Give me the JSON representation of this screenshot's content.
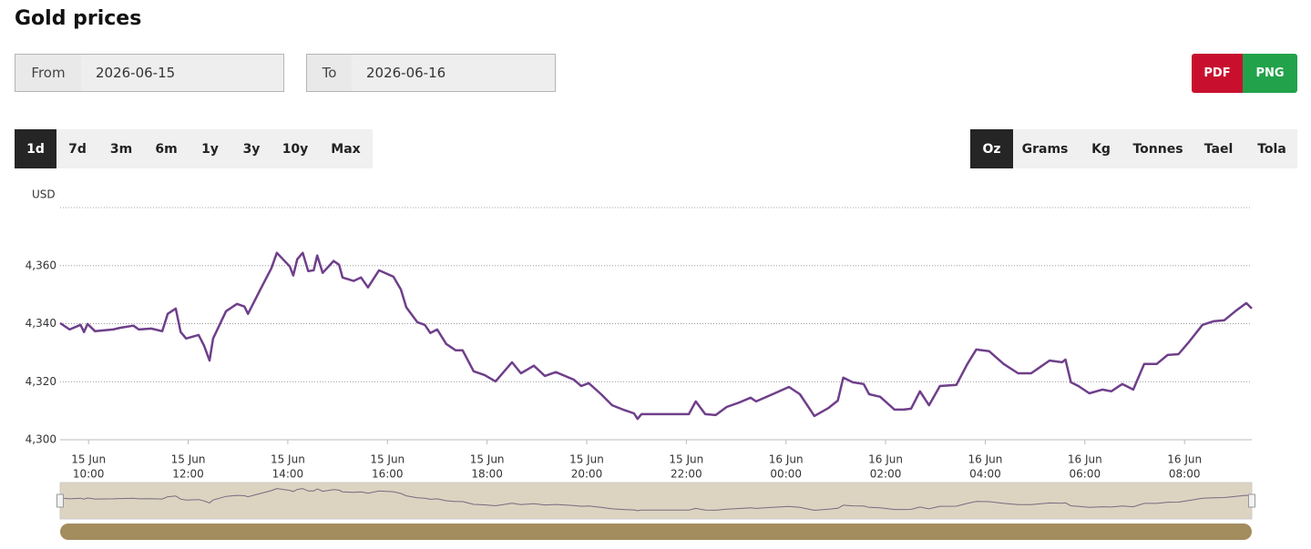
{
  "header": {
    "title": "Gold prices"
  },
  "date_range": {
    "from_label": "From",
    "from_value": "2026-06-15",
    "to_label": "To",
    "to_value": "2026-06-16"
  },
  "export": [
    "PDF",
    "PNG"
  ],
  "periods": {
    "options": [
      "1d",
      "7d",
      "3m",
      "6m",
      "1y",
      "3y",
      "10y",
      "Max"
    ],
    "selected": 0
  },
  "units": {
    "options": [
      "Oz",
      "Grams",
      "Kg",
      "Tonnes",
      "Tael",
      "Tola"
    ],
    "selected": 0
  },
  "chart_data": {
    "type": "line",
    "y_label": "USD",
    "color": "#6f3f8a",
    "x": [
      9.43,
      9.62,
      9.84,
      9.91,
      9.98,
      10.13,
      10.49,
      10.64,
      10.9,
      11.01,
      11.26,
      11.48,
      11.59,
      11.75,
      11.85,
      11.96,
      12.21,
      12.32,
      12.43,
      12.5,
      12.76,
      12.98,
      13.13,
      13.2,
      13.45,
      13.67,
      13.78,
      14.04,
      14.11,
      14.19,
      14.3,
      14.41,
      14.52,
      14.59,
      14.7,
      14.92,
      15.03,
      15.1,
      15.32,
      15.47,
      15.61,
      15.83,
      16.12,
      16.27,
      16.38,
      16.6,
      16.75,
      16.86,
      17.0,
      17.18,
      17.37,
      17.51,
      17.73,
      17.95,
      18.17,
      18.5,
      18.68,
      18.94,
      19.16,
      19.38,
      19.74,
      19.89,
      20.04,
      20.29,
      20.51,
      20.73,
      20.95,
      21.02,
      21.1,
      22.05,
      22.19,
      22.38,
      22.59,
      22.81,
      23.07,
      23.29,
      23.4,
      23.73,
      24.06,
      24.28,
      24.57,
      24.86,
      25.04,
      25.15,
      25.34,
      25.56,
      25.67,
      25.89,
      26.18,
      26.36,
      26.51,
      26.69,
      26.87,
      27.09,
      27.42,
      27.64,
      27.82,
      28.08,
      28.37,
      28.66,
      28.92,
      29.29,
      29.54,
      29.61,
      29.72,
      29.87,
      30.09,
      30.35,
      30.53,
      30.75,
      30.97,
      31.19,
      31.44,
      31.66,
      31.88,
      32.1,
      32.36,
      32.58,
      32.8,
      33.02,
      33.24,
      33.35
    ],
    "values": [
      4340.2,
      4338.0,
      4339.6,
      4337.1,
      4339.9,
      4337.4,
      4338.0,
      4338.6,
      4339.3,
      4338.0,
      4338.3,
      4337.4,
      4343.4,
      4345.2,
      4337.1,
      4334.9,
      4336.1,
      4332.4,
      4327.3,
      4334.9,
      4344.3,
      4346.8,
      4345.9,
      4343.4,
      4351.8,
      4359.1,
      4364.4,
      4359.7,
      4356.6,
      4362.2,
      4364.4,
      4358.1,
      4358.4,
      4363.5,
      4357.5,
      4361.6,
      4360.3,
      4355.9,
      4354.7,
      4355.9,
      4352.5,
      4358.4,
      4356.2,
      4351.8,
      4345.6,
      4340.5,
      4339.6,
      4336.8,
      4338.0,
      4333.0,
      4330.8,
      4330.8,
      4323.6,
      4322.3,
      4320.1,
      4326.7,
      4322.9,
      4325.5,
      4322.0,
      4323.3,
      4320.7,
      4318.5,
      4319.5,
      4315.7,
      4311.9,
      4310.4,
      4309.1,
      4307.2,
      4308.8,
      4308.8,
      4313.2,
      4308.8,
      4308.5,
      4311.3,
      4312.9,
      4314.5,
      4313.2,
      4315.7,
      4318.2,
      4315.7,
      4308.2,
      4311.0,
      4313.5,
      4321.4,
      4319.8,
      4319.2,
      4315.7,
      4314.8,
      4310.4,
      4310.4,
      4310.7,
      4316.7,
      4311.9,
      4318.5,
      4318.9,
      4326.1,
      4331.1,
      4330.5,
      4326.1,
      4322.9,
      4322.9,
      4327.3,
      4326.7,
      4327.6,
      4319.8,
      4318.5,
      4316.0,
      4317.3,
      4316.7,
      4319.2,
      4317.3,
      4326.1,
      4326.1,
      4329.2,
      4329.5,
      4333.9,
      4339.6,
      4340.8,
      4341.2,
      4344.3,
      4347.1,
      4345.2
    ],
    "xlim": [
      9.43,
      33.35
    ],
    "xticks": [
      {
        "value": 10,
        "label": [
          "15 Jun",
          "10:00"
        ]
      },
      {
        "value": 12,
        "label": [
          "15 Jun",
          "12:00"
        ]
      },
      {
        "value": 14,
        "label": [
          "15 Jun",
          "14:00"
        ]
      },
      {
        "value": 16,
        "label": [
          "15 Jun",
          "16:00"
        ]
      },
      {
        "value": 18,
        "label": [
          "15 Jun",
          "18:00"
        ]
      },
      {
        "value": 20,
        "label": [
          "15 Jun",
          "20:00"
        ]
      },
      {
        "value": 22,
        "label": [
          "15 Jun",
          "22:00"
        ]
      },
      {
        "value": 24,
        "label": [
          "16 Jun",
          "00:00"
        ]
      },
      {
        "value": 26,
        "label": [
          "16 Jun",
          "02:00"
        ]
      },
      {
        "value": 28,
        "label": [
          "16 Jun",
          "04:00"
        ]
      },
      {
        "value": 30,
        "label": [
          "16 Jun",
          "06:00"
        ]
      },
      {
        "value": 32,
        "label": [
          "16 Jun",
          "08:00"
        ]
      }
    ],
    "ylim": [
      4300,
      4380
    ],
    "yticks": [
      {
        "value": 4300,
        "label": "4,300"
      },
      {
        "value": 4320,
        "label": "4,320"
      },
      {
        "value": 4340,
        "label": "4,340"
      },
      {
        "value": 4360,
        "label": "4,360"
      }
    ],
    "grid": true
  }
}
